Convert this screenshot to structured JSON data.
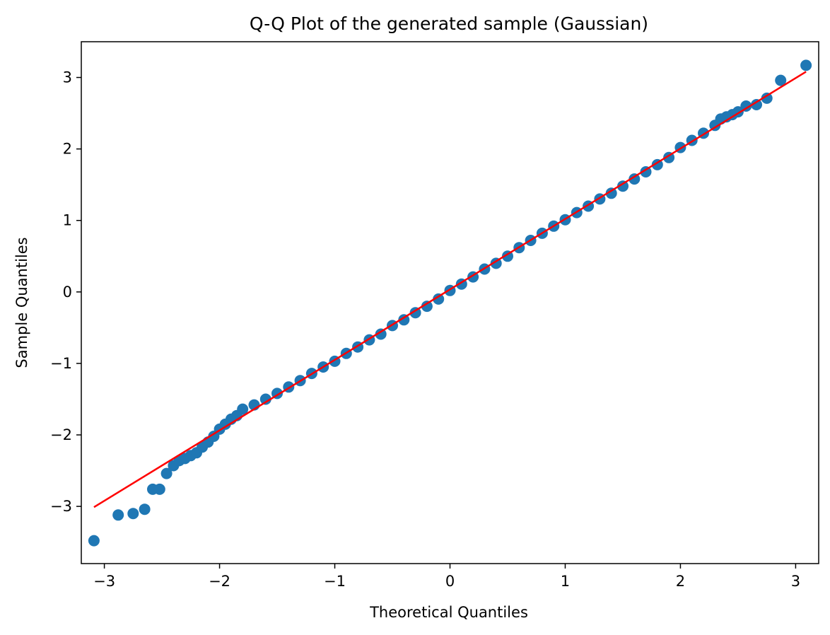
{
  "chart_data": {
    "type": "scatter",
    "title": "Q-Q Plot of the generated sample (Gaussian)",
    "xlabel": "Theoretical Quantiles",
    "ylabel": "Sample Quantiles",
    "xlim": [
      -3.2,
      3.2
    ],
    "ylim": [
      -3.8,
      3.5
    ],
    "xticks": [
      -3,
      -2,
      -1,
      0,
      1,
      2,
      3
    ],
    "xtick_labels": [
      "−3",
      "−2",
      "−1",
      "0",
      "1",
      "2",
      "3"
    ],
    "yticks": [
      -3,
      -2,
      -1,
      0,
      1,
      2,
      3
    ],
    "ytick_labels": [
      "−3",
      "−2",
      "−1",
      "0",
      "1",
      "2",
      "3"
    ],
    "grid": false,
    "marker_color": "#1f77b4",
    "line_color": "#ff0000",
    "reference_line": {
      "x": [
        -3.09,
        3.09
      ],
      "y": [
        -3.01,
        3.08
      ]
    },
    "series": [
      {
        "x": [
          -3.09,
          -2.88,
          -2.75,
          -2.65,
          -2.58,
          -2.52,
          -2.46,
          -2.4,
          -2.35,
          -2.3,
          -2.25,
          -2.2,
          -2.15,
          -2.1,
          -2.05,
          -2.0,
          -1.95,
          -1.9,
          -1.85,
          -1.8,
          -1.7,
          -1.6,
          -1.5,
          -1.4,
          -1.3,
          -1.2,
          -1.1,
          -1.0,
          -0.9,
          -0.8,
          -0.7,
          -0.6,
          -0.5,
          -0.4,
          -0.3,
          -0.2,
          -0.1,
          0.0,
          0.1,
          0.2,
          0.3,
          0.4,
          0.5,
          0.6,
          0.7,
          0.8,
          0.9,
          1.0,
          1.1,
          1.2,
          1.3,
          1.4,
          1.5,
          1.6,
          1.7,
          1.8,
          1.9,
          2.0,
          2.1,
          2.2,
          2.3,
          2.35,
          2.4,
          2.45,
          2.5,
          2.57,
          2.66,
          2.75,
          2.87,
          3.09
        ],
        "y": [
          -3.48,
          -3.12,
          -3.1,
          -3.04,
          -2.76,
          -2.76,
          -2.54,
          -2.43,
          -2.36,
          -2.33,
          -2.29,
          -2.25,
          -2.17,
          -2.1,
          -2.02,
          -1.92,
          -1.85,
          -1.78,
          -1.73,
          -1.64,
          -1.58,
          -1.5,
          -1.42,
          -1.33,
          -1.24,
          -1.14,
          -1.05,
          -0.97,
          -0.86,
          -0.77,
          -0.67,
          -0.59,
          -0.47,
          -0.39,
          -0.29,
          -0.2,
          -0.1,
          0.02,
          0.11,
          0.21,
          0.32,
          0.4,
          0.5,
          0.62,
          0.72,
          0.82,
          0.92,
          1.01,
          1.11,
          1.2,
          1.3,
          1.38,
          1.48,
          1.58,
          1.68,
          1.78,
          1.88,
          2.02,
          2.12,
          2.22,
          2.33,
          2.42,
          2.45,
          2.48,
          2.52,
          2.6,
          2.62,
          2.71,
          2.96,
          3.17
        ]
      }
    ]
  }
}
